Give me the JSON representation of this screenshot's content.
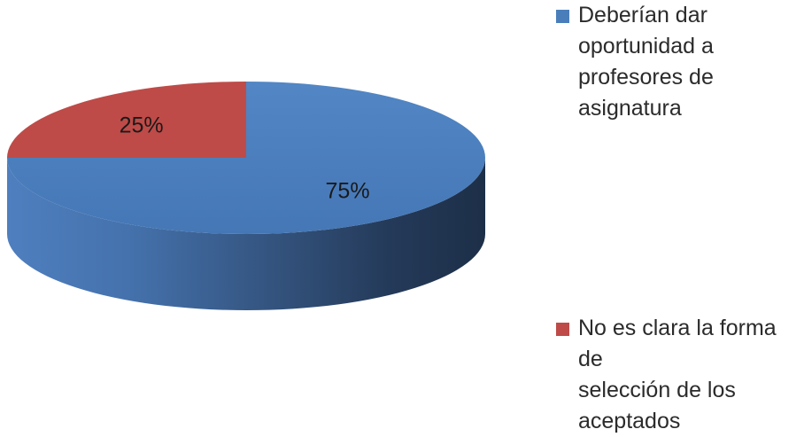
{
  "chart_data": {
    "type": "pie",
    "style": "3d",
    "slices": [
      {
        "label": "Deberían dar oportunidad a profesores de asignatura",
        "value": 75,
        "data_label": "75%",
        "color": "#4a7ebb"
      },
      {
        "label": "No es clara la forma de selección de los aceptados",
        "value": 25,
        "data_label": "25%",
        "color": "#be4b48"
      }
    ],
    "legend_position": "right"
  },
  "legend": [
    {
      "text": "Deberían dar\noportunidad a\nprofesores de\nasignatura",
      "color": "#4a7ebb"
    },
    {
      "text": "No es clara la forma de\nselección de los\naceptados",
      "color": "#be4b48"
    }
  ]
}
